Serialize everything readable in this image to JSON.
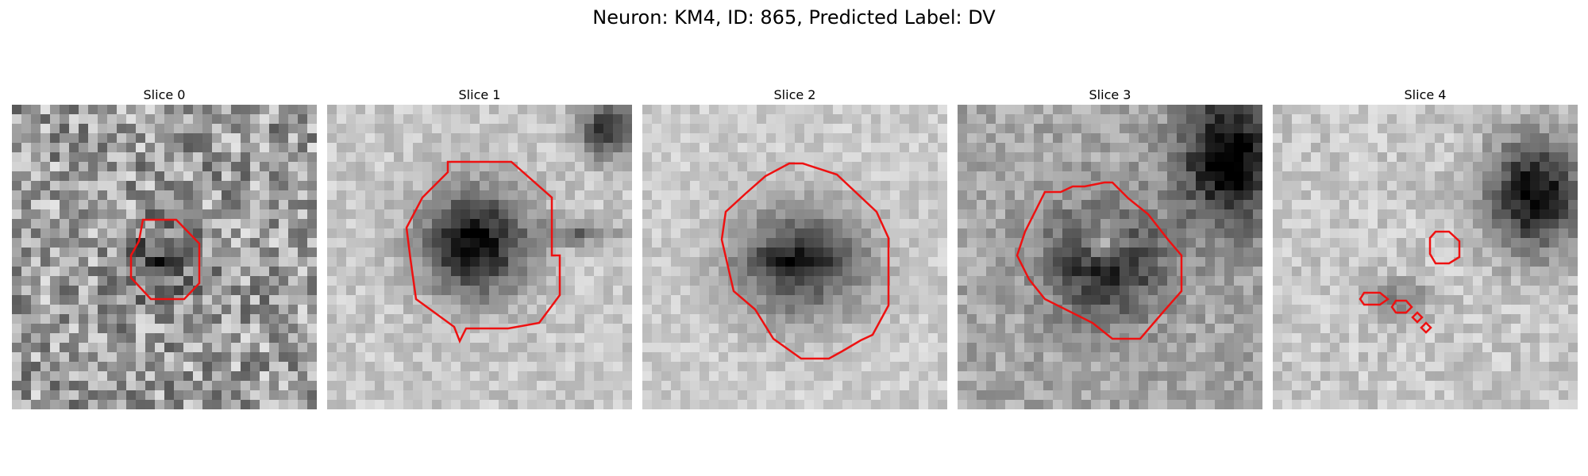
{
  "figure": {
    "title": "Neuron: KM4, ID: 865, Predicted Label: DV"
  },
  "panels": [
    {
      "title": "Slice 0",
      "texture": "noisy",
      "contour_color": "#ee1111"
    },
    {
      "title": "Slice 1",
      "texture": "dark-blob",
      "contour_color": "#ee1111"
    },
    {
      "title": "Slice 2",
      "texture": "striped-blob",
      "contour_color": "#ee1111"
    },
    {
      "title": "Slice 3",
      "texture": "light-center-blob",
      "contour_color": "#ee1111"
    },
    {
      "title": "Slice 4",
      "texture": "fragmented",
      "contour_color": "#ee1111"
    }
  ]
}
